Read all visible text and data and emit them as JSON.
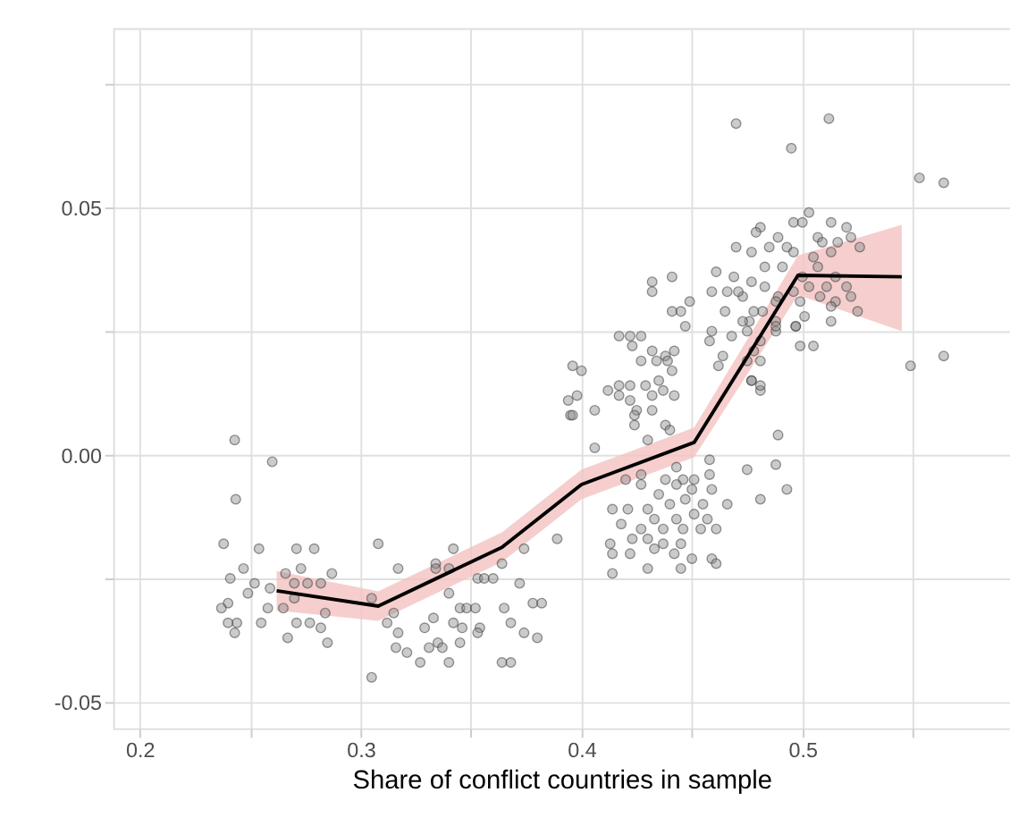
{
  "chart_data": {
    "type": "scatter",
    "xlabel": "Share of conflict countries in sample",
    "xlim": [
      0.188,
      0.594
    ],
    "ylim": [
      -0.0553,
      0.0863
    ],
    "xticks": [
      {
        "value": 0.2,
        "label": "0.2"
      },
      {
        "value": 0.25,
        "label": null
      },
      {
        "value": 0.3,
        "label": "0.3"
      },
      {
        "value": 0.35,
        "label": null
      },
      {
        "value": 0.4,
        "label": "0.4"
      },
      {
        "value": 0.45,
        "label": null
      },
      {
        "value": 0.5,
        "label": "0.5"
      },
      {
        "value": 0.55,
        "label": null
      }
    ],
    "yticks": [
      {
        "value": -0.05,
        "label": "-0.05"
      },
      {
        "value": -0.025,
        "label": null
      },
      {
        "value": 0,
        "label": "0.00"
      },
      {
        "value": 0.025,
        "label": null
      },
      {
        "value": 0.05,
        "label": "0.05"
      },
      {
        "value": 0.075,
        "label": null
      }
    ],
    "grid": true,
    "series": [
      {
        "type": "scatter",
        "marker": "circle",
        "color": "#8c8c8c",
        "x": [
          0.243,
          0.26,
          0.2435,
          0.238,
          0.254,
          0.247,
          0.241,
          0.252,
          0.249,
          0.259,
          0.24,
          0.237,
          0.244,
          0.24,
          0.243,
          0.255,
          0.258,
          0.265,
          0.266,
          0.271,
          0.279,
          0.273,
          0.27,
          0.276,
          0.282,
          0.287,
          0.27,
          0.284,
          0.271,
          0.277,
          0.282,
          0.267,
          0.285,
          0.305,
          0.308,
          0.305,
          0.315,
          0.317,
          0.312,
          0.317,
          0.316,
          0.321,
          0.327,
          0.329,
          0.333,
          0.331,
          0.335,
          0.337,
          0.34,
          0.334,
          0.334,
          0.34,
          0.342,
          0.34,
          0.342,
          0.345,
          0.346,
          0.345,
          0.348,
          0.352,
          0.353,
          0.356,
          0.36,
          0.354,
          0.353,
          0.364,
          0.365,
          0.368,
          0.364,
          0.368,
          0.372,
          0.374,
          0.374,
          0.378,
          0.382,
          0.38,
          0.389,
          0.394,
          0.395,
          0.432,
          0.432,
          0.441,
          0.441,
          0.445,
          0.449,
          0.447,
          0.417,
          0.422,
          0.427,
          0.423,
          0.432,
          0.438,
          0.442,
          0.427,
          0.434,
          0.439,
          0.441,
          0.4,
          0.396,
          0.412,
          0.417,
          0.417,
          0.422,
          0.429,
          0.435,
          0.437,
          0.442,
          0.432,
          0.422,
          0.425,
          0.432,
          0.424,
          0.406,
          0.398,
          0.438,
          0.44,
          0.424,
          0.43,
          0.406,
          0.396,
          0.443,
          0.458,
          0.458,
          0.451,
          0.446,
          0.438,
          0.427,
          0.42,
          0.427,
          0.435,
          0.443,
          0.45,
          0.459,
          0.466,
          0.455,
          0.447,
          0.44,
          0.43,
          0.421,
          0.414,
          0.433,
          0.443,
          0.451,
          0.457,
          0.461,
          0.454,
          0.446,
          0.437,
          0.427,
          0.418,
          0.413,
          0.423,
          0.43,
          0.437,
          0.445,
          0.45,
          0.459,
          0.442,
          0.433,
          0.422,
          0.414,
          0.414,
          0.43,
          0.445,
          0.461,
          0.475,
          0.488,
          0.493,
          0.481,
          0.489,
          0.461,
          0.469,
          0.466,
          0.459,
          0.473,
          0.465,
          0.459,
          0.458,
          0.468,
          0.476,
          0.482,
          0.488,
          0.488,
          0.497,
          0.505,
          0.464,
          0.462,
          0.475,
          0.481,
          0.477,
          0.481,
          0.47,
          0.512,
          0.495,
          0.553,
          0.564,
          0.549,
          0.564,
          0.499,
          0.503,
          0.496,
          0.5,
          0.513,
          0.481,
          0.479,
          0.489,
          0.507,
          0.509,
          0.52,
          0.516,
          0.522,
          0.526,
          0.493,
          0.485,
          0.477,
          0.47,
          0.496,
          0.505,
          0.513,
          0.483,
          0.491,
          0.507,
          0.515,
          0.5,
          0.503,
          0.511,
          0.52,
          0.522,
          0.508,
          0.496,
          0.499,
          0.515,
          0.489,
          0.483,
          0.477,
          0.471,
          0.501,
          0.513,
          0.525,
          0.513,
          0.488,
          0.478,
          0.473,
          0.475,
          0.481,
          0.488,
          0.497,
          0.478,
          0.477,
          0.481
        ],
        "values": [
          0.003,
          -0.0014,
          -0.009,
          -0.018,
          -0.019,
          -0.023,
          -0.025,
          -0.026,
          -0.028,
          -0.027,
          -0.03,
          -0.031,
          -0.034,
          -0.034,
          -0.036,
          -0.034,
          -0.031,
          -0.031,
          -0.024,
          -0.019,
          -0.019,
          -0.023,
          -0.026,
          -0.026,
          -0.026,
          -0.024,
          -0.029,
          -0.032,
          -0.034,
          -0.034,
          -0.035,
          -0.037,
          -0.038,
          -0.029,
          -0.018,
          -0.045,
          -0.032,
          -0.023,
          -0.034,
          -0.036,
          -0.039,
          -0.04,
          -0.042,
          -0.035,
          -0.033,
          -0.039,
          -0.038,
          -0.039,
          -0.042,
          -0.022,
          -0.023,
          -0.023,
          -0.019,
          -0.028,
          -0.034,
          -0.038,
          -0.035,
          -0.031,
          -0.031,
          -0.031,
          -0.025,
          -0.025,
          -0.025,
          -0.035,
          -0.036,
          -0.022,
          -0.031,
          -0.034,
          -0.042,
          -0.042,
          -0.026,
          -0.019,
          -0.036,
          -0.03,
          -0.03,
          -0.037,
          -0.017,
          0.011,
          0.008,
          0.035,
          0.033,
          0.036,
          0.029,
          0.029,
          0.031,
          0.026,
          0.024,
          0.024,
          0.024,
          0.022,
          0.021,
          0.02,
          0.021,
          0.019,
          0.019,
          0.019,
          0.017,
          0.017,
          0.018,
          0.013,
          0.014,
          0.012,
          0.014,
          0.014,
          0.015,
          0.013,
          0.012,
          0.012,
          0.011,
          0.009,
          0.009,
          0.008,
          0.009,
          0.012,
          0.006,
          0.005,
          0.006,
          0.003,
          0.0014,
          0.008,
          -0.0025,
          -0.001,
          -0.004,
          -0.005,
          -0.005,
          -0.005,
          -0.004,
          -0.005,
          -0.006,
          -0.008,
          -0.006,
          -0.007,
          -0.007,
          -0.01,
          -0.01,
          -0.009,
          -0.01,
          -0.011,
          -0.011,
          -0.011,
          -0.013,
          -0.013,
          -0.012,
          -0.013,
          -0.015,
          -0.015,
          -0.015,
          -0.015,
          -0.015,
          -0.014,
          -0.018,
          -0.017,
          -0.017,
          -0.018,
          -0.018,
          -0.021,
          -0.021,
          -0.02,
          -0.019,
          -0.02,
          -0.02,
          -0.024,
          -0.023,
          -0.023,
          -0.022,
          -0.003,
          -0.002,
          -0.007,
          -0.009,
          0.004,
          0.037,
          0.036,
          0.033,
          0.033,
          0.032,
          0.029,
          0.025,
          0.023,
          0.024,
          0.027,
          0.029,
          0.027,
          0.025,
          0.026,
          0.022,
          0.02,
          0.018,
          0.019,
          0.019,
          0.015,
          0.013,
          0.067,
          0.068,
          0.062,
          0.056,
          0.055,
          0.018,
          0.02,
          0.022,
          0.049,
          0.047,
          0.047,
          0.047,
          0.046,
          0.045,
          0.044,
          0.044,
          0.043,
          0.046,
          0.043,
          0.044,
          0.042,
          0.042,
          0.042,
          0.041,
          0.042,
          0.041,
          0.04,
          0.041,
          0.038,
          0.038,
          0.038,
          0.036,
          0.036,
          0.034,
          0.034,
          0.034,
          0.032,
          0.032,
          0.033,
          0.031,
          0.031,
          0.032,
          0.034,
          0.035,
          0.033,
          0.028,
          0.027,
          0.029,
          0.03,
          0.031,
          0.029,
          0.027,
          0.025,
          0.023,
          0.026,
          0.026,
          0.021,
          0.015,
          0.014
        ]
      },
      {
        "type": "line",
        "color": "#000000",
        "line_style": "solid",
        "x": [
          0.262,
          0.308,
          0.364,
          0.4,
          0.451,
          0.498,
          0.545
        ],
        "values": [
          -0.0275,
          -0.0306,
          -0.0187,
          -0.006,
          0.0025,
          0.0363,
          0.036
        ],
        "lower": [
          -0.0315,
          -0.0336,
          -0.0217,
          -0.009,
          -0.0005,
          0.0323,
          0.025
        ],
        "upper": [
          -0.0235,
          -0.0276,
          -0.0157,
          -0.003,
          0.0055,
          0.0403,
          0.0465
        ]
      }
    ]
  }
}
